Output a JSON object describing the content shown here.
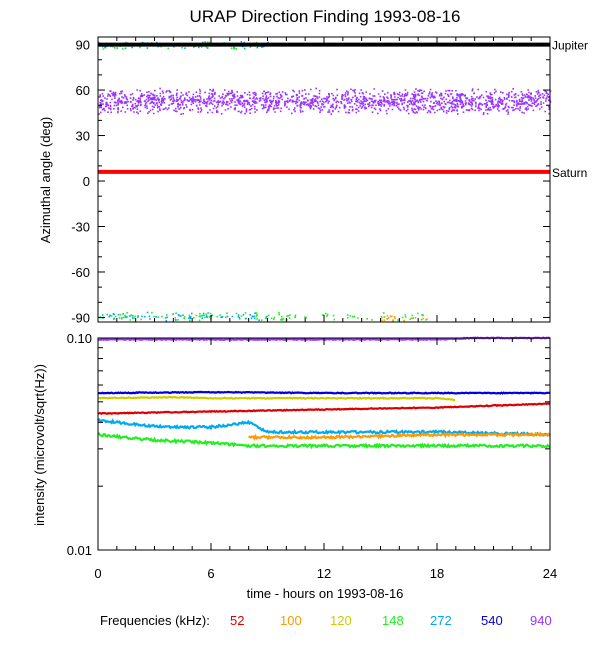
{
  "chart_data": [
    {
      "type": "scatter",
      "title": "URAP Direction Finding  1993-08-16",
      "ylabel": "Azimuthal angle (deg)",
      "xlabel": "",
      "xlim": [
        0,
        24
      ],
      "ylim": [
        -93,
        95
      ],
      "yticks": [
        -90,
        -60,
        -30,
        0,
        30,
        60,
        90
      ],
      "reference_lines": [
        {
          "name": "Jupiter",
          "y": 90,
          "color": "#000000"
        },
        {
          "name": "Saturn",
          "y": 6,
          "color": "#ff0000"
        }
      ],
      "point_clusters": [
        {
          "frequency_khz": 940,
          "x_range": [
            0,
            24
          ],
          "y_center": 53,
          "y_spread": 9
        },
        {
          "frequency_khz": 148,
          "x_range": [
            0,
            8.5
          ],
          "y_center": 90,
          "y_spread": 3
        },
        {
          "frequency_khz": 272,
          "x_range": [
            0,
            9
          ],
          "y_center": 90,
          "y_spread": 3
        },
        {
          "frequency_khz": 148,
          "x_range": [
            0,
            17.5
          ],
          "y_center": -89,
          "y_spread": 3
        },
        {
          "frequency_khz": 272,
          "x_range": [
            0,
            9
          ],
          "y_center": -89,
          "y_spread": 3
        },
        {
          "frequency_khz": 100,
          "x_range": [
            15,
            17.5
          ],
          "y_center": -90,
          "y_spread": 2
        }
      ]
    },
    {
      "type": "line",
      "ylabel": "intensity (microvolt/sqrt(Hz))",
      "xlabel": "time - hours on 1993-08-16",
      "xlim": [
        0,
        24
      ],
      "xticks": [
        0,
        6,
        12,
        18,
        24
      ],
      "y_scale": "log",
      "ylim": [
        0.01,
        0.1
      ],
      "ytick_labels": [
        "0.01",
        "0.10"
      ],
      "series": [
        {
          "frequency_khz": 940,
          "color": "#9933ff",
          "x": [
            0,
            6,
            12,
            18,
            20,
            24
          ],
          "values": [
            0.0985,
            0.0985,
            0.0985,
            0.0985,
            0.1,
            0.1
          ]
        },
        {
          "frequency_khz": 540,
          "color": "#0000dd",
          "x": [
            0,
            6,
            12,
            18,
            24
          ],
          "values": [
            0.055,
            0.0555,
            0.055,
            0.055,
            0.055
          ]
        },
        {
          "frequency_khz": 120,
          "color": "#cccc00",
          "x": [
            0,
            4,
            6,
            9,
            12,
            18,
            19
          ],
          "values": [
            0.052,
            0.0525,
            0.052,
            0.052,
            0.052,
            0.052,
            0.051
          ]
        },
        {
          "frequency_khz": 52,
          "color": "#dd0000",
          "x": [
            0,
            6,
            12,
            18,
            24
          ],
          "values": [
            0.044,
            0.045,
            0.046,
            0.047,
            0.049
          ]
        },
        {
          "frequency_khz": 272,
          "color": "#00aaee",
          "x": [
            0,
            2,
            4,
            6,
            8,
            9,
            12,
            18,
            24
          ],
          "values": [
            0.041,
            0.039,
            0.038,
            0.038,
            0.04,
            0.036,
            0.036,
            0.036,
            0.035
          ]
        },
        {
          "frequency_khz": 100,
          "color": "#ff9900",
          "x": [
            8,
            12,
            18,
            24
          ],
          "values": [
            0.034,
            0.034,
            0.035,
            0.035
          ]
        },
        {
          "frequency_khz": 148,
          "color": "#22ee22",
          "x": [
            0,
            3,
            6,
            8,
            12,
            18,
            24
          ],
          "values": [
            0.035,
            0.033,
            0.032,
            0.031,
            0.031,
            0.031,
            0.031
          ]
        }
      ]
    }
  ],
  "legend": {
    "label": "Frequencies (kHz):",
    "items": [
      {
        "label": "52",
        "color": "#dd0000"
      },
      {
        "label": "100",
        "color": "#ff9900"
      },
      {
        "label": "120",
        "color": "#cccc00"
      },
      {
        "label": "148",
        "color": "#22ee22"
      },
      {
        "label": "272",
        "color": "#00aaee"
      },
      {
        "label": "540",
        "color": "#0000dd"
      },
      {
        "label": "940",
        "color": "#9933ff"
      }
    ]
  }
}
